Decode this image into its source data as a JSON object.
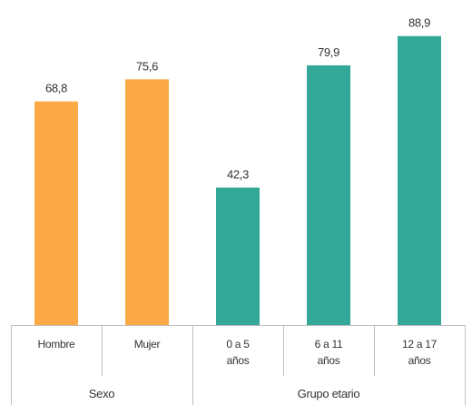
{
  "chart_data": {
    "type": "bar",
    "categories": [
      [
        "Hombre"
      ],
      [
        "Mujer"
      ],
      [
        "0 a 5",
        "años"
      ],
      [
        "6 a 11",
        "años"
      ],
      [
        "12 a 17",
        "años"
      ]
    ],
    "values": [
      68.8,
      75.6,
      42.3,
      79.9,
      88.9
    ],
    "value_labels": [
      "68,8",
      "75,6",
      "42,3",
      "79,9",
      "88,9"
    ],
    "groups": [
      {
        "label": "Sexo",
        "category_indices": [
          0,
          1
        ],
        "color": "#FBAA45"
      },
      {
        "label": "Grupo etario",
        "category_indices": [
          2,
          3,
          4
        ],
        "color": "#34A898"
      }
    ],
    "ylim": [
      0,
      100
    ],
    "grid": false,
    "legend": "none"
  }
}
